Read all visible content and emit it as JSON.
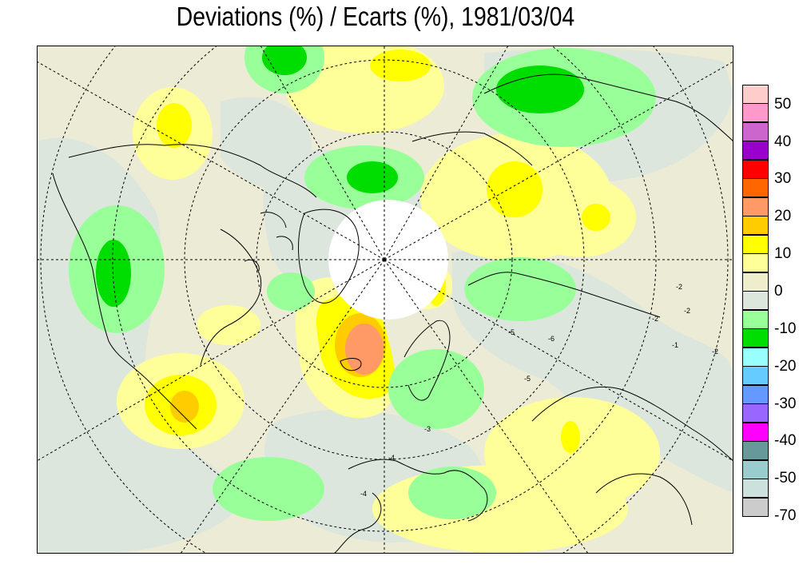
{
  "title": "Deviations (%) / Ecarts (%), 1981/03/04",
  "legend": {
    "colors": [
      "#ffcccc",
      "#ff99cc",
      "#cc66cc",
      "#9900cc",
      "#ff0000",
      "#ff6600",
      "#ff9966",
      "#ffcc00",
      "#ffff00",
      "#ffff99",
      "#eeeecc",
      "#dde6dd",
      "#99ff99",
      "#00dd00",
      "#99ffff",
      "#66ccff",
      "#6699ff",
      "#9966ff",
      "#ff00ff",
      "#669999",
      "#99cccc",
      "#cce0dd",
      "#cccccc"
    ],
    "labels": [
      "50",
      "40",
      "30",
      "20",
      "10",
      "0",
      "-10",
      "-20",
      "-30",
      "-40",
      "-50",
      "-70"
    ]
  },
  "map": {
    "background_color": "#ecebd6",
    "land_outline_color": "#000000",
    "grid_color": "#000000",
    "contour_labels": [
      "-5",
      "-5",
      "-6",
      "-3",
      "-4",
      "-4",
      "-2",
      "-2",
      "-1",
      "-2",
      "-2"
    ]
  }
}
